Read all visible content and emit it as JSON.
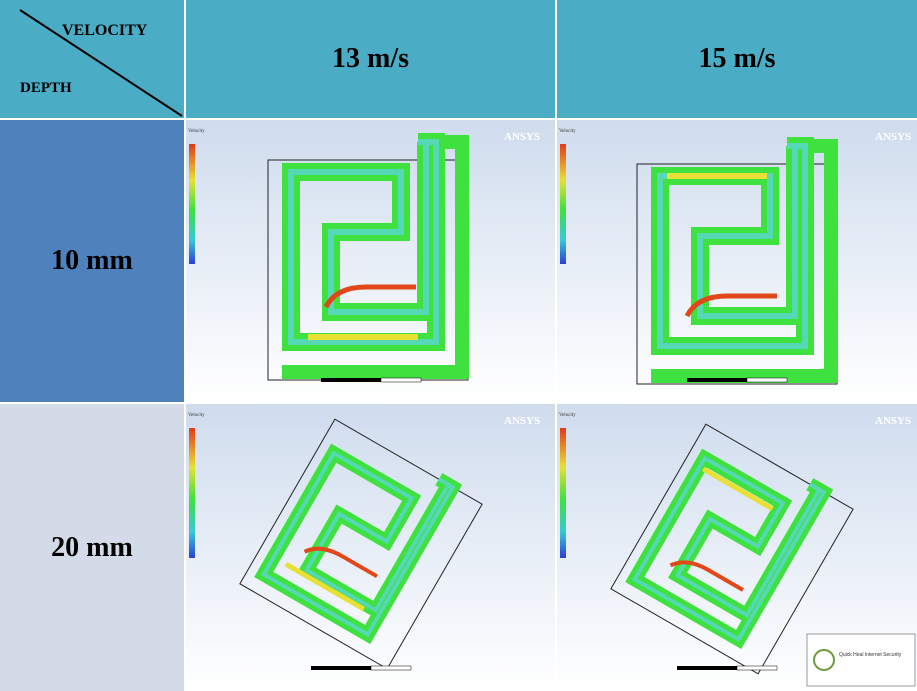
{
  "header": {
    "corner_top": "VELOCITY",
    "corner_bottom": "DEPTH",
    "col1": "13 m/s",
    "col2": "15 m/s"
  },
  "rows": [
    {
      "label": "10 mm"
    },
    {
      "label": "20 mm"
    }
  ],
  "plots": {
    "software_logo": "ANSYS",
    "legend_title": "Velocity",
    "popup_text": "Quick Heal Internet Security"
  },
  "colors": {
    "header_bg": "#4bacc6",
    "row1_bg": "#4f81bd",
    "row2_bg": "#d3dbe8",
    "flow_green": "#3ee13e",
    "flow_yellow": "#e6e634",
    "flow_red": "#e2471a",
    "flow_cyan": "#5fd4e8",
    "background_blue": "#dbe4f1"
  }
}
